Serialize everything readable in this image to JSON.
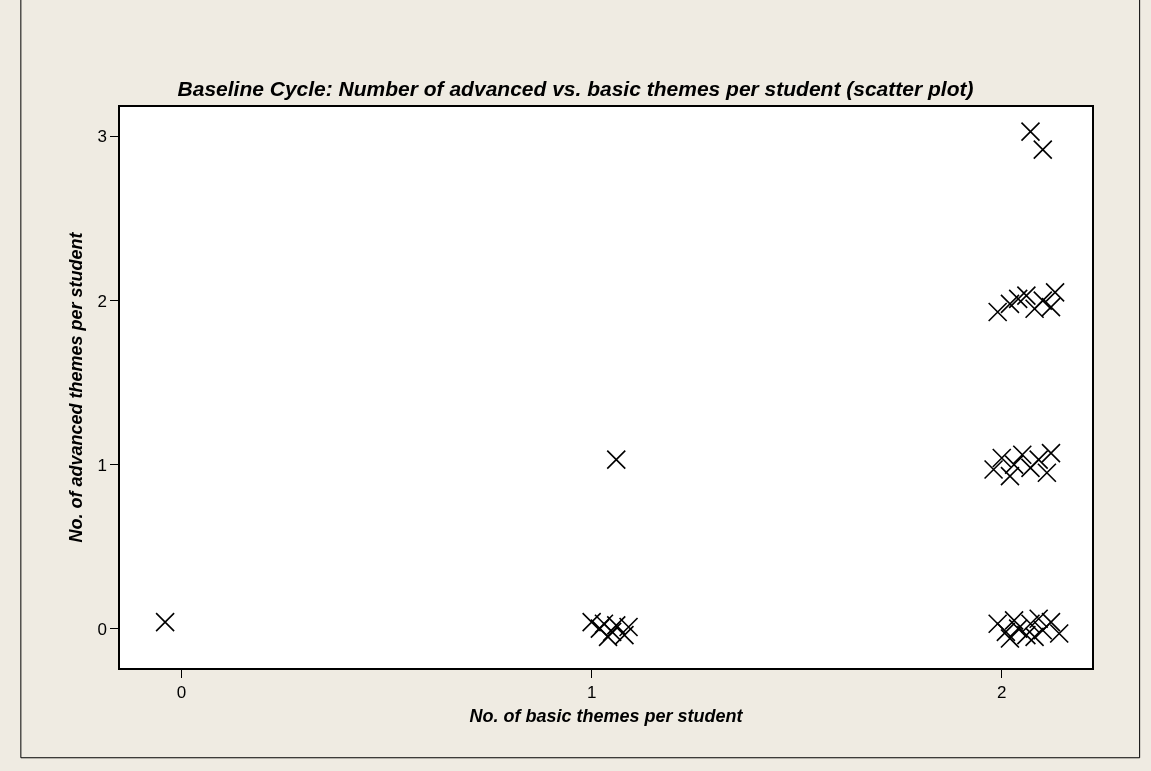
{
  "chart_data": {
    "type": "scatter",
    "title": "Baseline Cycle: Number of advanced vs. basic themes per student (scatter plot)",
    "xlabel": "No. of basic themes per student",
    "ylabel": "No. of advanced themes per student",
    "x": [
      -0.04,
      1.06,
      2.07,
      2.1,
      1.99,
      2.02,
      2.04,
      2.06,
      2.1,
      2.12,
      2.13,
      2.08,
      1.98,
      2.0,
      2.03,
      2.05,
      2.07,
      2.09,
      2.11,
      2.02,
      2.12,
      1.99,
      2.01,
      2.03,
      2.04,
      2.06,
      2.07,
      2.09,
      2.1,
      2.12,
      2.02,
      2.08,
      2.14,
      1.0,
      1.02,
      1.03,
      1.05,
      1.06,
      1.08,
      1.09,
      1.04
    ],
    "series": [
      {
        "color": "#000000",
        "values": [
          0.04,
          1.03,
          3.03,
          2.92,
          1.93,
          1.98,
          2.01,
          2.03,
          2.0,
          1.96,
          2.05,
          1.95,
          0.97,
          1.04,
          1.0,
          1.06,
          0.98,
          1.03,
          0.95,
          0.93,
          1.07,
          0.03,
          -0.02,
          0.05,
          0.0,
          -0.04,
          0.03,
          0.06,
          -0.01,
          0.04,
          -0.06,
          -0.05,
          -0.03,
          0.04,
          0.0,
          0.03,
          -0.02,
          0.02,
          -0.04,
          0.01,
          -0.05
        ]
      }
    ],
    "xlim": [
      -0.15,
      2.22
    ],
    "ylim": [
      -0.24,
      3.18
    ],
    "xticks": [
      0,
      1,
      2
    ],
    "yticks": [
      0,
      1,
      2,
      3
    ],
    "marker": "cross"
  }
}
